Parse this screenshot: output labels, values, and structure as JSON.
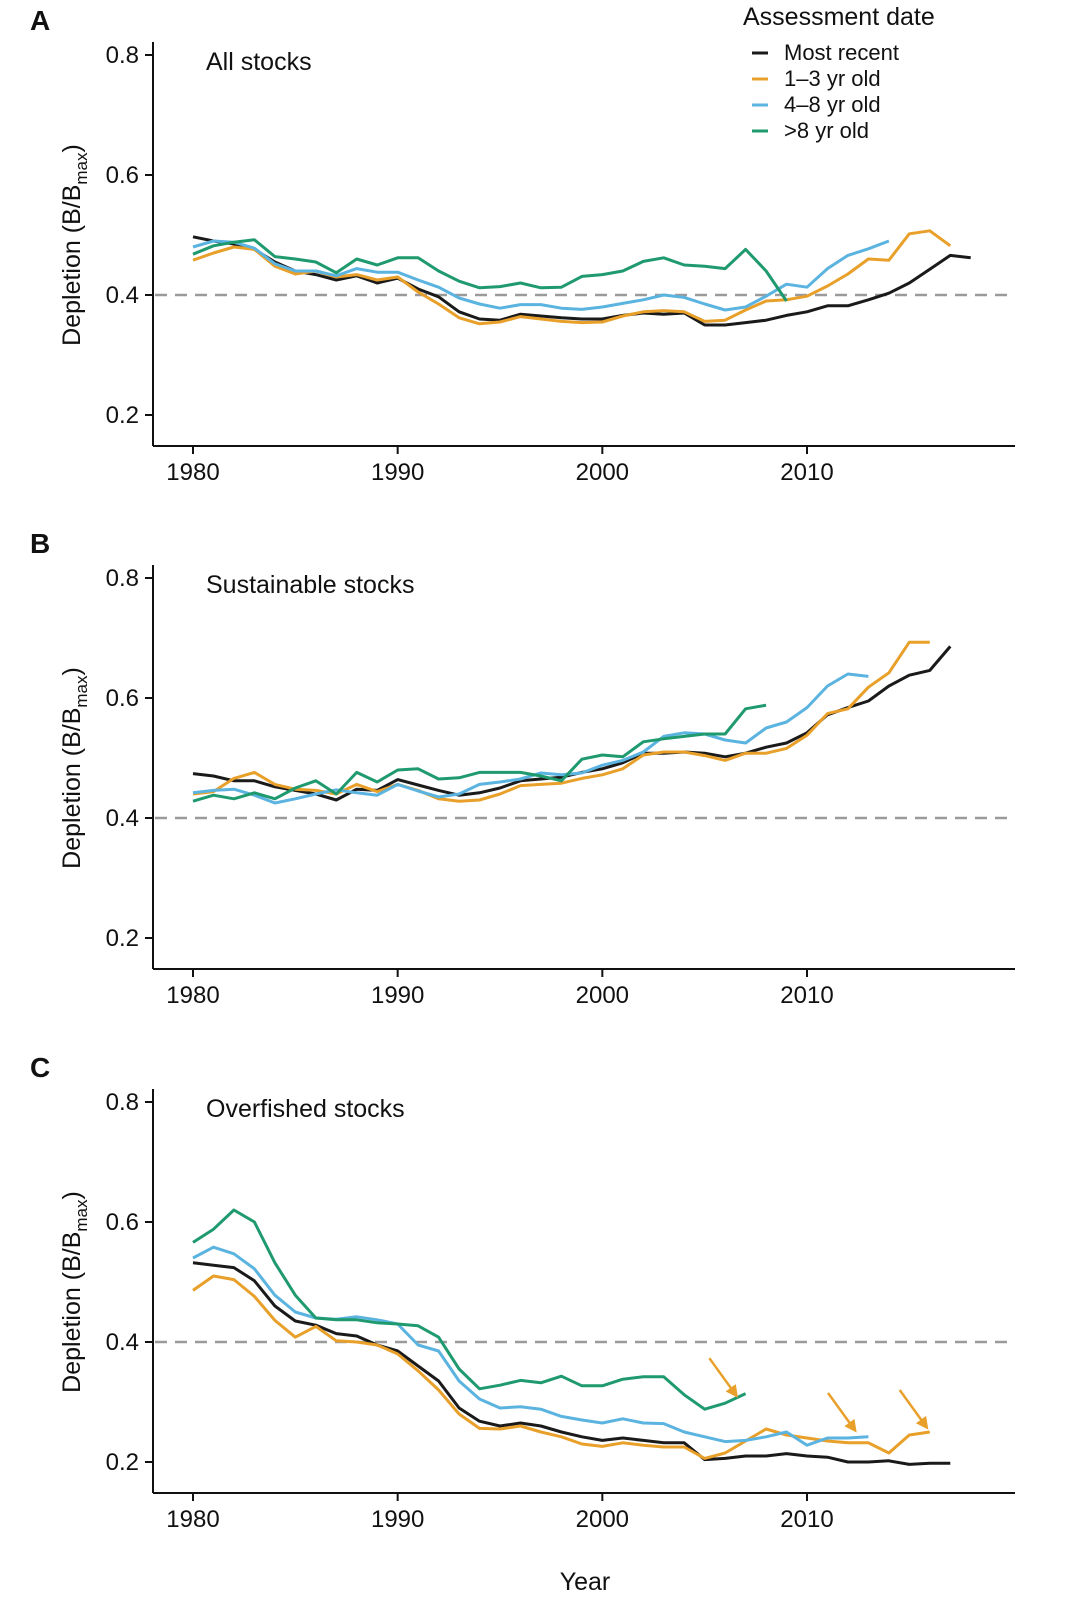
{
  "figure": {
    "legend": {
      "title": "Assessment date",
      "entries": [
        {
          "label": "Most recent",
          "color": "#1a1a1a"
        },
        {
          "label": "1–3 yr old",
          "color": "#e8a02a"
        },
        {
          "label": "4–8 yr old",
          "color": "#5bb3e0"
        },
        {
          "label": ">8 yr old",
          "color": "#1f9a6e"
        }
      ]
    },
    "y_axis_label": "Depletion (B/B",
    "y_axis_label_sub": "max",
    "y_axis_label_end": ")",
    "x_axis_label": "Year",
    "reference_line": {
      "y": 0.4,
      "color": "#9a9a9a"
    },
    "arrow_color": "#e8a02a"
  },
  "chart_data": [
    {
      "type": "line",
      "panel_letter": "A",
      "title": "All stocks",
      "xlim": [
        1978,
        2021
      ],
      "ylim": [
        0.15,
        0.85
      ],
      "x_ticks": [
        1980,
        1990,
        2000,
        2010
      ],
      "y_ticks": [
        0.2,
        0.4,
        0.6,
        0.8
      ],
      "series": [
        {
          "name": "Most recent",
          "color": "#1a1a1a",
          "x_start": 1980,
          "values": [
            0.497,
            0.49,
            0.485,
            0.476,
            0.455,
            0.44,
            0.434,
            0.425,
            0.432,
            0.42,
            0.428,
            0.41,
            0.397,
            0.372,
            0.36,
            0.358,
            0.368,
            0.365,
            0.362,
            0.36,
            0.36,
            0.366,
            0.37,
            0.368,
            0.37,
            0.35,
            0.35,
            0.354,
            0.358,
            0.366,
            0.372,
            0.382,
            0.382,
            0.392,
            0.403,
            0.42,
            0.443,
            0.466,
            0.462
          ]
        },
        {
          "name": "1–3 yr old",
          "color": "#e8a02a",
          "x_start": 1980,
          "values": [
            0.458,
            0.47,
            0.48,
            0.476,
            0.448,
            0.435,
            0.44,
            0.43,
            0.434,
            0.425,
            0.43,
            0.405,
            0.385,
            0.362,
            0.352,
            0.355,
            0.364,
            0.36,
            0.356,
            0.354,
            0.355,
            0.365,
            0.372,
            0.374,
            0.372,
            0.356,
            0.358,
            0.375,
            0.39,
            0.392,
            0.398,
            0.415,
            0.435,
            0.46,
            0.458,
            0.502,
            0.507,
            0.482
          ]
        },
        {
          "name": "4–8 yr old",
          "color": "#5bb3e0",
          "x_start": 1980,
          "values": [
            0.48,
            0.49,
            0.488,
            0.478,
            0.452,
            0.44,
            0.44,
            0.432,
            0.444,
            0.438,
            0.438,
            0.425,
            0.413,
            0.395,
            0.385,
            0.378,
            0.384,
            0.384,
            0.378,
            0.376,
            0.38,
            0.386,
            0.392,
            0.4,
            0.396,
            0.385,
            0.375,
            0.38,
            0.398,
            0.418,
            0.413,
            0.444,
            0.466,
            0.477,
            0.49
          ]
        },
        {
          "name": ">8 yr old",
          "color": "#1f9a6e",
          "x_start": 1980,
          "values": [
            0.468,
            0.482,
            0.488,
            0.492,
            0.464,
            0.46,
            0.455,
            0.437,
            0.46,
            0.45,
            0.462,
            0.462,
            0.44,
            0.423,
            0.412,
            0.414,
            0.42,
            0.412,
            0.413,
            0.431,
            0.434,
            0.44,
            0.456,
            0.462,
            0.45,
            0.448,
            0.444,
            0.476,
            0.44,
            0.39
          ]
        }
      ],
      "arrows": []
    },
    {
      "type": "line",
      "panel_letter": "B",
      "title": "Sustainable stocks",
      "xlim": [
        1978,
        2021
      ],
      "ylim": [
        0.15,
        0.85
      ],
      "x_ticks": [
        1980,
        1990,
        2000,
        2010
      ],
      "y_ticks": [
        0.2,
        0.4,
        0.6,
        0.8
      ],
      "series": [
        {
          "name": "Most recent",
          "color": "#1a1a1a",
          "x_start": 1980,
          "values": [
            0.474,
            0.47,
            0.462,
            0.462,
            0.452,
            0.446,
            0.44,
            0.43,
            0.448,
            0.446,
            0.464,
            0.455,
            0.446,
            0.438,
            0.442,
            0.45,
            0.462,
            0.465,
            0.468,
            0.476,
            0.482,
            0.492,
            0.508,
            0.508,
            0.51,
            0.508,
            0.502,
            0.508,
            0.518,
            0.525,
            0.542,
            0.572,
            0.584,
            0.595,
            0.62,
            0.638,
            0.646,
            0.686
          ]
        },
        {
          "name": "1–3 yr old",
          "color": "#e8a02a",
          "x_start": 1980,
          "values": [
            0.44,
            0.444,
            0.466,
            0.476,
            0.456,
            0.448,
            0.446,
            0.44,
            0.456,
            0.444,
            0.456,
            0.446,
            0.432,
            0.428,
            0.43,
            0.44,
            0.454,
            0.456,
            0.458,
            0.466,
            0.472,
            0.482,
            0.505,
            0.51,
            0.51,
            0.504,
            0.496,
            0.508,
            0.508,
            0.516,
            0.538,
            0.574,
            0.582,
            0.618,
            0.642,
            0.693,
            0.693
          ]
        },
        {
          "name": "4–8 yr old",
          "color": "#5bb3e0",
          "x_start": 1980,
          "values": [
            0.442,
            0.446,
            0.448,
            0.438,
            0.425,
            0.432,
            0.44,
            0.447,
            0.442,
            0.438,
            0.456,
            0.445,
            0.435,
            0.44,
            0.456,
            0.46,
            0.465,
            0.475,
            0.472,
            0.475,
            0.488,
            0.496,
            0.51,
            0.536,
            0.542,
            0.54,
            0.53,
            0.525,
            0.55,
            0.56,
            0.584,
            0.62,
            0.64,
            0.636
          ]
        },
        {
          "name": ">8 yr old",
          "color": "#1f9a6e",
          "x_start": 1980,
          "values": [
            0.428,
            0.438,
            0.432,
            0.442,
            0.432,
            0.45,
            0.462,
            0.44,
            0.476,
            0.46,
            0.48,
            0.482,
            0.465,
            0.467,
            0.476,
            0.476,
            0.476,
            0.47,
            0.462,
            0.498,
            0.505,
            0.502,
            0.527,
            0.532,
            0.536,
            0.54,
            0.54,
            0.582,
            0.588
          ]
        }
      ],
      "arrows": []
    },
    {
      "type": "line",
      "panel_letter": "C",
      "title": "Overfished stocks",
      "xlim": [
        1978,
        2021
      ],
      "ylim": [
        0.15,
        0.85
      ],
      "x_ticks": [
        1980,
        1990,
        2000,
        2010
      ],
      "y_ticks": [
        0.2,
        0.4,
        0.6,
        0.8
      ],
      "series": [
        {
          "name": "Most recent",
          "color": "#1a1a1a",
          "x_start": 1980,
          "values": [
            0.532,
            0.528,
            0.524,
            0.502,
            0.46,
            0.435,
            0.428,
            0.414,
            0.41,
            0.395,
            0.385,
            0.36,
            0.335,
            0.29,
            0.268,
            0.26,
            0.265,
            0.26,
            0.25,
            0.242,
            0.236,
            0.24,
            0.236,
            0.232,
            0.232,
            0.204,
            0.206,
            0.21,
            0.21,
            0.214,
            0.21,
            0.208,
            0.2,
            0.2,
            0.202,
            0.196,
            0.198,
            0.198
          ]
        },
        {
          "name": "1–3 yr old",
          "color": "#e8a02a",
          "x_start": 1980,
          "values": [
            0.486,
            0.51,
            0.504,
            0.476,
            0.436,
            0.408,
            0.426,
            0.402,
            0.4,
            0.395,
            0.38,
            0.352,
            0.32,
            0.28,
            0.256,
            0.255,
            0.26,
            0.25,
            0.242,
            0.23,
            0.226,
            0.232,
            0.228,
            0.225,
            0.225,
            0.206,
            0.215,
            0.235,
            0.255,
            0.245,
            0.24,
            0.235,
            0.232,
            0.232,
            0.215,
            0.245,
            0.25
          ]
        },
        {
          "name": "4–8 yr old",
          "color": "#5bb3e0",
          "x_start": 1980,
          "values": [
            0.54,
            0.558,
            0.547,
            0.522,
            0.478,
            0.45,
            0.44,
            0.438,
            0.442,
            0.437,
            0.43,
            0.395,
            0.385,
            0.335,
            0.305,
            0.29,
            0.292,
            0.288,
            0.276,
            0.27,
            0.265,
            0.272,
            0.265,
            0.264,
            0.25,
            0.242,
            0.234,
            0.236,
            0.242,
            0.25,
            0.228,
            0.24,
            0.24,
            0.242
          ]
        },
        {
          "name": ">8 yr old",
          "color": "#1f9a6e",
          "x_start": 1980,
          "values": [
            0.566,
            0.588,
            0.62,
            0.6,
            0.532,
            0.478,
            0.44,
            0.437,
            0.437,
            0.432,
            0.43,
            0.427,
            0.408,
            0.355,
            0.322,
            0.328,
            0.336,
            0.332,
            0.343,
            0.327,
            0.327,
            0.338,
            0.342,
            0.342,
            0.312,
            0.288,
            0.298,
            0.314
          ]
        }
      ],
      "arrows": [
        {
          "to_x": 2006.5,
          "to_y": 0.313
        },
        {
          "to_x": 2012.3,
          "to_y": 0.255
        },
        {
          "to_x": 2015.8,
          "to_y": 0.26
        }
      ]
    }
  ]
}
